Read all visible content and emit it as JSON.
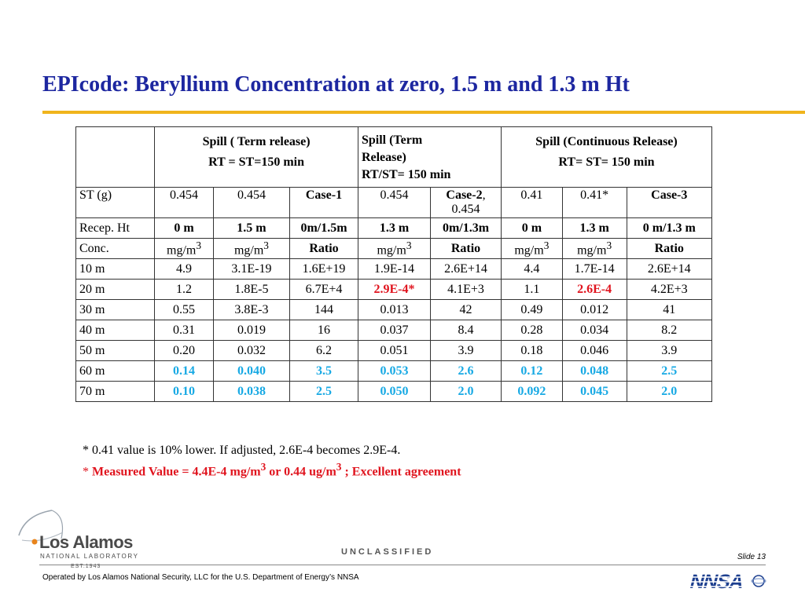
{
  "title": "EPIcode: Beryllium Concentration at zero, 1.5 m and 1.3 m Ht",
  "table": {
    "headers": {
      "group1": {
        "line1": "Spill ( Term release)",
        "line2": "RT = ST=150 min"
      },
      "group2": {
        "line1": "Spill (Term",
        "line2": "Release)",
        "line3": "RT/ST= 150 min"
      },
      "group3": {
        "line1": "Spill (Continuous Release)",
        "line2": "RT= ST= 150 min"
      }
    },
    "st_row": {
      "label": "ST (g)",
      "c1": "0.454",
      "c2": "0.454",
      "c3": "Case-1",
      "c4": "0.454",
      "c5_bold": "Case-2",
      "c5_comma": ",",
      "c5_value": "0.454",
      "c6": "0.41",
      "c7": "0.41*",
      "c8": "Case-3"
    },
    "recep_row": {
      "label": "Recep. Ht",
      "cells": [
        "0 m",
        "1.5 m",
        "0m/1.5m",
        "1.3 m",
        "0m/1.3m",
        "0 m",
        "1.3 m",
        "0 m/1.3 m"
      ]
    },
    "conc_row": {
      "label": "Conc.",
      "unit_base": "mg/m",
      "unit_sup": "3",
      "ratio": "Ratio"
    },
    "rows": [
      {
        "label": "10 m",
        "cells": [
          "4.9",
          "3.1E-19",
          "1.6E+19",
          "1.9E-14",
          "2.6E+14",
          "4.4",
          "1.7E-14",
          "2.6E+14"
        ]
      },
      {
        "label": "20 m",
        "cells": [
          "1.2",
          "1.8E-5",
          "6.7E+4",
          "2.9E-4*",
          "4.1E+3",
          "1.1",
          "2.6E-4",
          "4.2E+3"
        ]
      },
      {
        "label": "30 m",
        "cells": [
          "0.55",
          "3.8E-3",
          "144",
          "0.013",
          "42",
          "0.49",
          "0.012",
          "41"
        ]
      },
      {
        "label": "40 m",
        "cells": [
          "0.31",
          "0.019",
          "16",
          "0.037",
          "8.4",
          "0.28",
          "0.034",
          "8.2"
        ]
      },
      {
        "label": "50 m",
        "cells": [
          "0.20",
          "0.032",
          "6.2",
          "0.051",
          "3.9",
          "0.18",
          "0.046",
          "3.9"
        ]
      },
      {
        "label": "60 m",
        "cells": [
          "0.14",
          "0.040",
          "3.5",
          "0.053",
          "2.6",
          "0.12",
          "0.048",
          "2.5"
        ]
      },
      {
        "label": "70 m",
        "cells": [
          "0.10",
          "0.038",
          "2.5",
          "0.050",
          "2.0",
          "0.092",
          "0.045",
          "2.0"
        ]
      }
    ]
  },
  "notes": {
    "note1": "* 0.41 value is 10% lower. If adjusted, 2.6E-4 becomes 2.9E-4.",
    "note2_star": "* ",
    "note2_part1": "Measured Value = 4.4E-4 mg/m",
    "note2_sup1": "3",
    "note2_part2": " or 0.44 ug/m",
    "note2_sup2": "3",
    "note2_part3": " ; Excellent agreement"
  },
  "footer": {
    "logo_name": "Los Alamos",
    "logo_sub": "NATIONAL LABORATORY",
    "logo_est": "EST.1943",
    "classification": "UNCLASSIFIED",
    "slide_label": "Slide 13",
    "operated_by": "Operated by Los Alamos National Security, LLC for the U.S. Department of Energy’s NNSA",
    "nnsa_logo_text": "NNSA"
  },
  "colors": {
    "title": "#1d27a0",
    "title_rule": "#f0b41c",
    "highlight_red": "#e0141e",
    "highlight_cyan": "#17a9e4"
  }
}
